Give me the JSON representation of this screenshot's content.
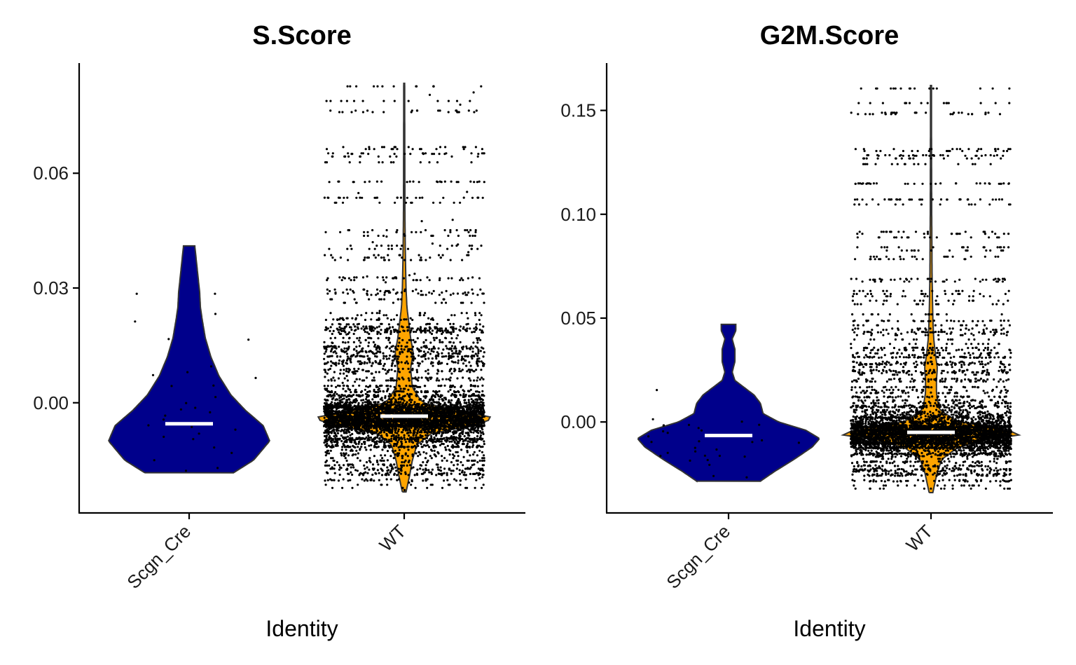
{
  "chart_data": [
    {
      "type": "violin",
      "title": "S.Score",
      "xlabel": "Identity",
      "ylabel": "",
      "categories": [
        "Scgn_Cre",
        "WT"
      ],
      "ylim": [
        -0.0288,
        0.0888
      ],
      "yticks": [
        0.0,
        0.03,
        0.06
      ],
      "ytick_labels": [
        "0.00",
        "0.03",
        "0.06"
      ],
      "colors": {
        "Scgn_Cre": "#00008B",
        "WT": "#FFA500"
      },
      "groups": [
        {
          "name": "Scgn_Cre",
          "n_points": 30,
          "median": -0.0055,
          "min": -0.0183,
          "max": 0.041,
          "density": [
            [
              -0.0183,
              0.55
            ],
            [
              -0.015,
              0.8
            ],
            [
              -0.01,
              1.0
            ],
            [
              -0.006,
              0.92
            ],
            [
              -0.002,
              0.7
            ],
            [
              0.002,
              0.52
            ],
            [
              0.007,
              0.37
            ],
            [
              0.012,
              0.27
            ],
            [
              0.017,
              0.2
            ],
            [
              0.022,
              0.16
            ],
            [
              0.025,
              0.14
            ],
            [
              0.029,
              0.13
            ],
            [
              0.033,
              0.11
            ],
            [
              0.037,
              0.09
            ],
            [
              0.041,
              0.07
            ]
          ],
          "points": [
            [
              -0.0065,
              -0.015
            ],
            [
              -0.0065,
              -0.0095
            ],
            [
              -0.0065,
              -0.0025
            ],
            [
              -0.0065,
              0.0015
            ],
            [
              -0.0065,
              0.0045
            ],
            [
              -0.0065,
              0.008
            ],
            [
              -0.0065,
              0.0095
            ],
            [
              -0.0065,
              0.0165
            ],
            [
              -0.0065,
              0.0285
            ],
            [
              -0.0065,
              0.0285
            ]
          ]
        },
        {
          "name": "WT",
          "n_points": 6000,
          "median": -0.0035,
          "min": -0.0233,
          "max": 0.0835,
          "density": [
            [
              -0.0233,
              0.02
            ],
            [
              -0.019,
              0.06
            ],
            [
              -0.015,
              0.09
            ],
            [
              -0.011,
              0.14
            ],
            [
              -0.008,
              0.3
            ],
            [
              -0.006,
              0.75
            ],
            [
              -0.004,
              1.0
            ],
            [
              -0.002,
              0.6
            ],
            [
              0.0,
              0.2
            ],
            [
              0.004,
              0.09
            ],
            [
              0.009,
              0.07
            ],
            [
              0.013,
              0.1
            ],
            [
              0.017,
              0.07
            ],
            [
              0.021,
              0.05
            ],
            [
              0.025,
              0.03
            ],
            [
              0.03,
              0.02
            ],
            [
              0.04,
              0.012
            ],
            [
              0.05,
              0.008
            ],
            [
              0.07,
              0.006
            ],
            [
              0.0835,
              0.005
            ]
          ]
        }
      ]
    },
    {
      "type": "violin",
      "title": "G2M.Score",
      "xlabel": "Identity",
      "ylabel": "",
      "categories": [
        "Scgn_Cre",
        "WT"
      ],
      "ylim": [
        -0.0438,
        0.1728
      ],
      "yticks": [
        0.0,
        0.05,
        0.1,
        0.15
      ],
      "ytick_labels": [
        "0.00",
        "0.05",
        "0.10",
        "0.15"
      ],
      "colors": {
        "Scgn_Cre": "#00008B",
        "WT": "#FFA500"
      },
      "groups": [
        {
          "name": "Scgn_Cre",
          "n_points": 30,
          "median": -0.0065,
          "min": -0.0285,
          "max": 0.047,
          "density": [
            [
              -0.0285,
              0.35
            ],
            [
              -0.024,
              0.5
            ],
            [
              -0.018,
              0.72
            ],
            [
              -0.012,
              0.92
            ],
            [
              -0.008,
              1.0
            ],
            [
              -0.004,
              0.85
            ],
            [
              0.0,
              0.55
            ],
            [
              0.004,
              0.38
            ],
            [
              0.009,
              0.35
            ],
            [
              0.013,
              0.28
            ],
            [
              0.017,
              0.16
            ],
            [
              0.02,
              0.07
            ],
            [
              0.024,
              0.04
            ],
            [
              0.029,
              0.07
            ],
            [
              0.035,
              0.07
            ],
            [
              0.04,
              0.04
            ],
            [
              0.044,
              0.08
            ],
            [
              0.047,
              0.08
            ]
          ]
        },
        {
          "name": "WT",
          "n_points": 6000,
          "median": -0.005,
          "min": -0.034,
          "max": 0.162,
          "density": [
            [
              -0.034,
              0.02
            ],
            [
              -0.03,
              0.04
            ],
            [
              -0.024,
              0.07
            ],
            [
              -0.018,
              0.12
            ],
            [
              -0.012,
              0.3
            ],
            [
              -0.008,
              0.7
            ],
            [
              -0.006,
              1.0
            ],
            [
              -0.003,
              0.75
            ],
            [
              0.0,
              0.3
            ],
            [
              0.006,
              0.09
            ],
            [
              0.014,
              0.06
            ],
            [
              0.02,
              0.06
            ],
            [
              0.026,
              0.07
            ],
            [
              0.032,
              0.05
            ],
            [
              0.04,
              0.03
            ],
            [
              0.05,
              0.02
            ],
            [
              0.07,
              0.012
            ],
            [
              0.1,
              0.008
            ],
            [
              0.13,
              0.006
            ],
            [
              0.162,
              0.005
            ]
          ]
        }
      ]
    }
  ]
}
